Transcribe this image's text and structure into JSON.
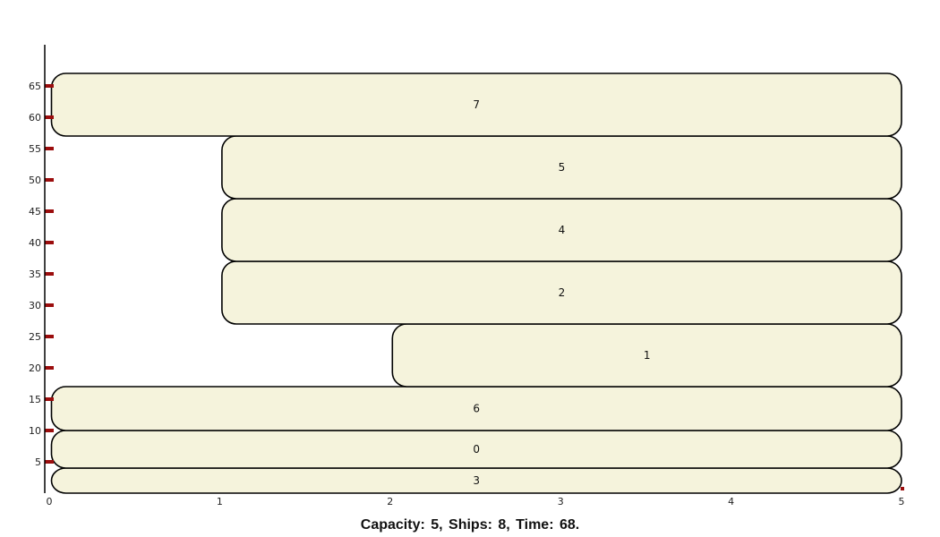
{
  "chart_data": {
    "type": "bar",
    "caption": "Capacity:  5, Ships:  8, Time:  68.",
    "x_ticks": [
      "0",
      "1",
      "2",
      "3",
      "4",
      "5"
    ],
    "y_ticks": [
      "5",
      "10",
      "15",
      "20",
      "25",
      "30",
      "35",
      "40",
      "45",
      "50",
      "55",
      "60",
      "65"
    ],
    "xlim": [
      0,
      5
    ],
    "ylim": [
      0,
      68
    ],
    "grid": false,
    "ships": [
      {
        "label": "3",
        "x_start": 0,
        "x_end": 5,
        "y_start": 0,
        "y_end": 4
      },
      {
        "label": "0",
        "x_start": 0,
        "x_end": 5,
        "y_start": 4,
        "y_end": 10
      },
      {
        "label": "6",
        "x_start": 0,
        "x_end": 5,
        "y_start": 10,
        "y_end": 17
      },
      {
        "label": "1",
        "x_start": 2,
        "x_end": 5,
        "y_start": 17,
        "y_end": 27
      },
      {
        "label": "2",
        "x_start": 1,
        "x_end": 5,
        "y_start": 27,
        "y_end": 37
      },
      {
        "label": "4",
        "x_start": 1,
        "x_end": 5,
        "y_start": 37,
        "y_end": 47
      },
      {
        "label": "5",
        "x_start": 1,
        "x_end": 5,
        "y_start": 47,
        "y_end": 57
      },
      {
        "label": "7",
        "x_start": 0,
        "x_end": 5,
        "y_start": 57,
        "y_end": 67
      }
    ],
    "colors": {
      "bar_fill": "#f5f3dc",
      "bar_stroke": "#000000",
      "tick_mark": "#9b0d0d",
      "axis": "#000000"
    }
  }
}
